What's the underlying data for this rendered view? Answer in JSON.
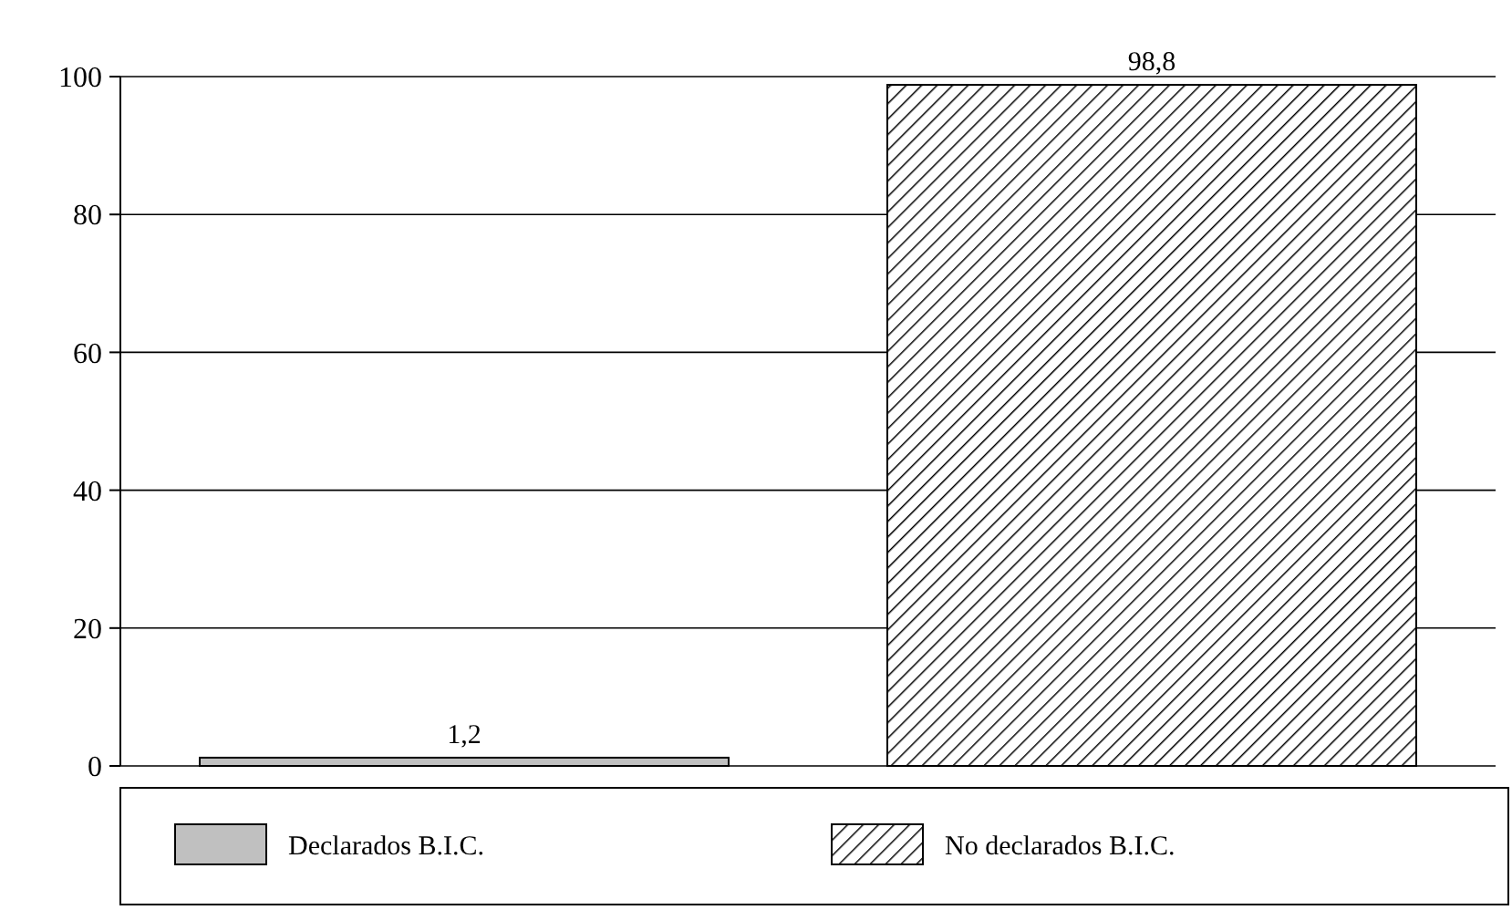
{
  "chart_data": {
    "type": "bar",
    "categories": [
      null,
      null
    ],
    "series": [
      {
        "name": "Declarados B.I.C.",
        "color": "#c0c0c0",
        "values": [
          1.2,
          null
        ],
        "value_labels": [
          "1,2",
          null
        ]
      },
      {
        "name": "No declarados B.I.C.",
        "color": "#000000",
        "values": [
          null,
          98.8
        ],
        "value_labels": [
          null,
          "98,8"
        ]
      }
    ],
    "ylim": [
      0,
      100
    ],
    "yticks": [
      0,
      20,
      40,
      60,
      80,
      100
    ],
    "grid": "y",
    "legend": "bottom"
  }
}
